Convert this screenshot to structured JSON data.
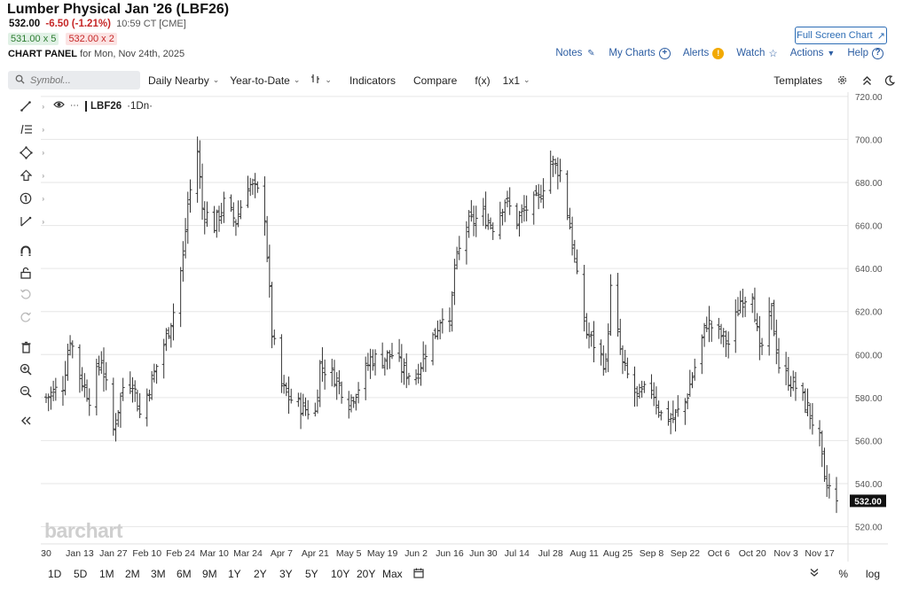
{
  "header": {
    "title": "Lumber Physical Jan '26 (LBF26)",
    "last": "532.00",
    "change": "-6.50 (-1.21%)",
    "time": "10:59 CT [CME]",
    "bid": "531.00 x 5",
    "ask": "532.00 x 2",
    "panel_label": "CHART PANEL",
    "panel_date": "for Mon, Nov 24th, 2025",
    "fullscreen": "Full Screen Chart"
  },
  "links": {
    "notes": "Notes",
    "mycharts": "My Charts",
    "alerts": "Alerts",
    "watch": "Watch",
    "actions": "Actions",
    "help": "Help"
  },
  "toolbar": {
    "symbol_placeholder": "Symbol...",
    "aggregation": "Daily Nearby",
    "period": "Year-to-Date",
    "indicators": "Indicators",
    "compare": "Compare",
    "fx": "f(x)",
    "layout": "1x1",
    "templates": "Templates"
  },
  "legend": {
    "symbol": "LBF26",
    "interval": "1Dn"
  },
  "watermark": "barchart",
  "ranges": [
    "1D",
    "5D",
    "1M",
    "2M",
    "3M",
    "6M",
    "9M",
    "1Y",
    "2Y",
    "3Y",
    "5Y",
    "10Y",
    "20Y",
    "Max"
  ],
  "bottom_right": {
    "pct": "%",
    "log": "log"
  },
  "colors": {
    "accent": "#2d6db5",
    "down": "#c62828",
    "up": "#2e7d32",
    "bars": "#333333",
    "grid": "#e6e6e6"
  },
  "chart_data": {
    "type": "bar",
    "subtype": "ohlc",
    "x_labels": [
      "30",
      "Jan 13",
      "Jan 27",
      "Feb 10",
      "Feb 24",
      "Mar 10",
      "Mar 24",
      "Apr 7",
      "Apr 21",
      "May 5",
      "May 19",
      "Jun 2",
      "Jun 16",
      "Jun 30",
      "Jul 14",
      "Jul 28",
      "Aug 11",
      "Aug 25",
      "Sep 8",
      "Sep 22",
      "Oct 6",
      "Oct 20",
      "Nov 3",
      "Nov 17"
    ],
    "y_ticks": [
      "720.00",
      "700.00",
      "680.00",
      "660.00",
      "640.00",
      "620.00",
      "600.00",
      "580.00",
      "560.00",
      "540.00",
      "520.00"
    ],
    "ylim": [
      512,
      722
    ],
    "last_price_label": "532.00",
    "last_price": 532.0,
    "anchors": [
      {
        "d": "Dec 30",
        "c": 580
      },
      {
        "d": "Jan 6",
        "c": 586
      },
      {
        "d": "Jan 9",
        "c": 608
      },
      {
        "d": "Jan 13",
        "c": 590
      },
      {
        "d": "Jan 17",
        "c": 580
      },
      {
        "d": "Jan 22",
        "c": 598
      },
      {
        "d": "Jan 27",
        "c": 565
      },
      {
        "d": "Jan 31",
        "c": 585
      },
      {
        "d": "Feb 4",
        "c": 588
      },
      {
        "d": "Feb 7",
        "c": 572
      },
      {
        "d": "Feb 12",
        "c": 588
      },
      {
        "d": "Feb 18",
        "c": 608
      },
      {
        "d": "Feb 21",
        "c": 620
      },
      {
        "d": "Feb 25",
        "c": 645
      },
      {
        "d": "Feb 27",
        "c": 670
      },
      {
        "d": "Mar 3",
        "c": 695
      },
      {
        "d": "Mar 5",
        "c": 668
      },
      {
        "d": "Mar 10",
        "c": 660
      },
      {
        "d": "Mar 14",
        "c": 670
      },
      {
        "d": "Mar 19",
        "c": 662
      },
      {
        "d": "Mar 24",
        "c": 680
      },
      {
        "d": "Mar 28",
        "c": 675
      },
      {
        "d": "Mar 31",
        "c": 665
      },
      {
        "d": "Apr 3",
        "c": 610
      },
      {
        "d": "Apr 7",
        "c": 585
      },
      {
        "d": "Apr 10",
        "c": 580
      },
      {
        "d": "Apr 16",
        "c": 575
      },
      {
        "d": "Apr 21",
        "c": 573
      },
      {
        "d": "Apr 23",
        "c": 595
      },
      {
        "d": "Apr 29",
        "c": 590
      },
      {
        "d": "May 5",
        "c": 578
      },
      {
        "d": "May 9",
        "c": 585
      },
      {
        "d": "May 14",
        "c": 598
      },
      {
        "d": "May 19",
        "c": 598
      },
      {
        "d": "May 23",
        "c": 600
      },
      {
        "d": "May 28",
        "c": 592
      },
      {
        "d": "Jun 2",
        "c": 590
      },
      {
        "d": "Jun 6",
        "c": 602
      },
      {
        "d": "Jun 10",
        "c": 610
      },
      {
        "d": "Jun 13",
        "c": 620
      },
      {
        "d": "Jun 16",
        "c": 612
      },
      {
        "d": "Jun 18",
        "c": 640
      },
      {
        "d": "Jun 23",
        "c": 660
      },
      {
        "d": "Jun 30",
        "c": 665
      },
      {
        "d": "Jul 4",
        "c": 660
      },
      {
        "d": "Jul 9",
        "c": 672
      },
      {
        "d": "Jul 14",
        "c": 662
      },
      {
        "d": "Jul 18",
        "c": 668
      },
      {
        "d": "Jul 23",
        "c": 672
      },
      {
        "d": "Jul 28",
        "c": 690
      },
      {
        "d": "Aug 1",
        "c": 685
      },
      {
        "d": "Aug 5",
        "c": 660
      },
      {
        "d": "Aug 8",
        "c": 635
      },
      {
        "d": "Aug 12",
        "c": 610
      },
      {
        "d": "Aug 15",
        "c": 605
      },
      {
        "d": "Aug 20",
        "c": 595
      },
      {
        "d": "Aug 22",
        "c": 630
      },
      {
        "d": "Aug 27",
        "c": 595
      },
      {
        "d": "Sep 2",
        "c": 580
      },
      {
        "d": "Sep 8",
        "c": 585
      },
      {
        "d": "Sep 12",
        "c": 572
      },
      {
        "d": "Sep 17",
        "c": 570
      },
      {
        "d": "Sep 22",
        "c": 578
      },
      {
        "d": "Sep 25",
        "c": 590
      },
      {
        "d": "Oct 1",
        "c": 615
      },
      {
        "d": "Oct 6",
        "c": 610
      },
      {
        "d": "Oct 10",
        "c": 605
      },
      {
        "d": "Oct 15",
        "c": 625
      },
      {
        "d": "Oct 20",
        "c": 630
      },
      {
        "d": "Oct 23",
        "c": 600
      },
      {
        "d": "Oct 28",
        "c": 620
      },
      {
        "d": "Oct 31",
        "c": 595
      },
      {
        "d": "Nov 3",
        "c": 590
      },
      {
        "d": "Nov 7",
        "c": 585
      },
      {
        "d": "Nov 12",
        "c": 575
      },
      {
        "d": "Nov 17",
        "c": 560
      },
      {
        "d": "Nov 19",
        "c": 540
      },
      {
        "d": "Nov 21",
        "c": 538
      },
      {
        "d": "Nov 24",
        "c": 532
      }
    ]
  }
}
